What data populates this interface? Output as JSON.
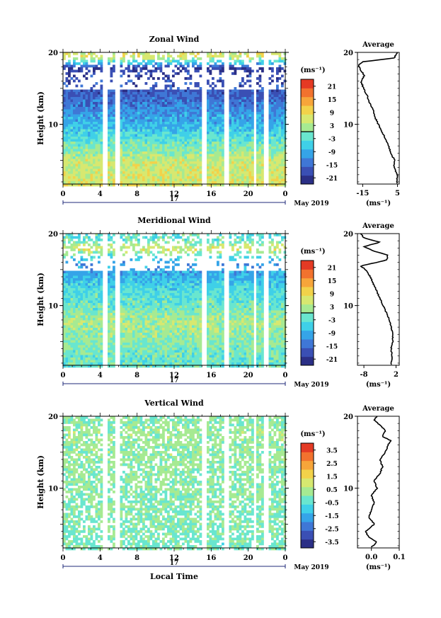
{
  "chart_data": [
    {
      "type": "heatmap",
      "title": "Zonal Wind",
      "ylabel": "Height (km)",
      "xlabel": "",
      "ylim": [
        1.7,
        20
      ],
      "yticks": [
        "10",
        "20"
      ],
      "xlim": [
        0,
        24
      ],
      "xticks": [
        "0",
        "4",
        "8",
        "12",
        "16",
        "20",
        "0"
      ],
      "day_label": "17",
      "date_label": "May 2019",
      "colorbar": {
        "unit": "(ms⁻¹)",
        "range": [
          -24,
          24
        ],
        "ticks": [
          "21",
          "15",
          "9",
          "3",
          "-3",
          "-9",
          "-15",
          "-21"
        ],
        "zero_line": true
      },
      "gaps_hours": [
        4.3,
        5.8,
        15.1,
        17.6,
        20.6,
        21.9
      ],
      "field_profile": [
        {
          "height": 2.5,
          "value": 6
        },
        {
          "height": 5,
          "value": 5
        },
        {
          "height": 8,
          "value": -3
        },
        {
          "height": 10,
          "value": -8
        },
        {
          "height": 12,
          "value": -12
        },
        {
          "height": 14,
          "value": -16
        },
        {
          "height": 16,
          "value": -18
        },
        {
          "height": 18,
          "value": -20
        },
        {
          "height": 19.5,
          "value": 6
        }
      ],
      "average": {
        "title": "Average",
        "xlabel": "(ms⁻¹)",
        "xticks": [
          "-15",
          "5"
        ],
        "xlim": [
          -18,
          6
        ],
        "yticks": [
          "10",
          "20"
        ],
        "profile": [
          {
            "height": 1.8,
            "value": 4.5
          },
          {
            "height": 3,
            "value": 5
          },
          {
            "height": 4,
            "value": 3
          },
          {
            "height": 5,
            "value": 3.5
          },
          {
            "height": 6,
            "value": 1
          },
          {
            "height": 7,
            "value": 0
          },
          {
            "height": 8,
            "value": -2
          },
          {
            "height": 9,
            "value": -4
          },
          {
            "height": 10,
            "value": -6
          },
          {
            "height": 11,
            "value": -8
          },
          {
            "height": 12,
            "value": -9
          },
          {
            "height": 13,
            "value": -11
          },
          {
            "height": 14,
            "value": -12.5
          },
          {
            "height": 15,
            "value": -14.5
          },
          {
            "height": 16,
            "value": -16
          },
          {
            "height": 16.8,
            "value": -14
          },
          {
            "height": 17.5,
            "value": -16
          },
          {
            "height": 18.2,
            "value": -17.5
          },
          {
            "height": 18.7,
            "value": -15
          },
          {
            "height": 19.2,
            "value": 3
          },
          {
            "height": 20,
            "value": 5
          }
        ]
      }
    },
    {
      "type": "heatmap",
      "title": "Meridional Wind",
      "ylabel": "Height (km)",
      "xlabel": "",
      "ylim": [
        1.7,
        20
      ],
      "yticks": [
        "10",
        "20"
      ],
      "xlim": [
        0,
        24
      ],
      "xticks": [
        "0",
        "4",
        "8",
        "12",
        "16",
        "20",
        "0"
      ],
      "day_label": "17",
      "date_label": "May 2019",
      "colorbar": {
        "unit": "(ms⁻¹)",
        "range": [
          -24,
          24
        ],
        "ticks": [
          "21",
          "15",
          "9",
          "3",
          "-3",
          "-9",
          "-15",
          "-21"
        ],
        "zero_line": true
      },
      "gaps_hours": [
        4.3,
        5.8,
        15.1,
        17.6,
        20.6,
        21.9
      ],
      "field_profile": [
        {
          "height": 2.5,
          "value": -2
        },
        {
          "height": 5,
          "value": 0
        },
        {
          "height": 8,
          "value": 3
        },
        {
          "height": 10,
          "value": -2
        },
        {
          "height": 12,
          "value": -4
        },
        {
          "height": 14,
          "value": -8
        },
        {
          "height": 16,
          "value": -12
        },
        {
          "height": 18,
          "value": 6
        },
        {
          "height": 19.5,
          "value": -3
        }
      ],
      "average": {
        "title": "Average",
        "xlabel": "(ms⁻¹)",
        "xticks": [
          "-8",
          "2"
        ],
        "xlim": [
          -10,
          3
        ],
        "yticks": [
          "10",
          "20"
        ],
        "profile": [
          {
            "height": 1.8,
            "value": 0.5
          },
          {
            "height": 3,
            "value": 0.8
          },
          {
            "height": 4,
            "value": 0.5
          },
          {
            "height": 5,
            "value": 1
          },
          {
            "height": 6,
            "value": 1
          },
          {
            "height": 7,
            "value": 0.5
          },
          {
            "height": 8,
            "value": 0
          },
          {
            "height": 9,
            "value": -1
          },
          {
            "height": 10,
            "value": -2
          },
          {
            "height": 11,
            "value": -3
          },
          {
            "height": 12,
            "value": -4
          },
          {
            "height": 13,
            "value": -5
          },
          {
            "height": 14,
            "value": -6
          },
          {
            "height": 15,
            "value": -7.5
          },
          {
            "height": 15.5,
            "value": -9
          },
          {
            "height": 16.3,
            "value": -1
          },
          {
            "height": 17,
            "value": -0.5
          },
          {
            "height": 17.6,
            "value": -5
          },
          {
            "height": 18.2,
            "value": -8
          },
          {
            "height": 18.8,
            "value": -3
          },
          {
            "height": 19.4,
            "value": -8
          },
          {
            "height": 20,
            "value": -9
          }
        ]
      }
    },
    {
      "type": "heatmap",
      "title": "Vertical Wind",
      "ylabel": "Height (km)",
      "xlabel": "Local Time",
      "ylim": [
        1.7,
        20
      ],
      "yticks": [
        "10",
        "20"
      ],
      "xlim": [
        0,
        24
      ],
      "xticks": [
        "0",
        "4",
        "8",
        "12",
        "16",
        "20",
        "0"
      ],
      "day_label": "17",
      "date_label": "May 2019",
      "colorbar": {
        "unit": "(ms⁻¹)",
        "range": [
          -4,
          4
        ],
        "ticks": [
          "3.5",
          "2.5",
          "1.5",
          "0.5",
          "-0.5",
          "-1.5",
          "-2.5",
          "-3.5"
        ],
        "zero_line": false
      },
      "gaps_hours": [
        4.3,
        5.8,
        15.1,
        17.6,
        20.6,
        21.9
      ],
      "field_profile": [
        {
          "height": 2.5,
          "value": -0.2
        },
        {
          "height": 5,
          "value": 0
        },
        {
          "height": 8,
          "value": 0
        },
        {
          "height": 10,
          "value": 0.1
        },
        {
          "height": 12,
          "value": 0.1
        },
        {
          "height": 14,
          "value": 0.2
        },
        {
          "height": 16,
          "value": 0.2
        },
        {
          "height": 18,
          "value": 0.3
        },
        {
          "height": 19.5,
          "value": 0.1
        }
      ],
      "average": {
        "title": "Average",
        "xlabel": "(ms⁻¹)",
        "xticks": [
          "0.0",
          "0.1"
        ],
        "xlim": [
          -0.05,
          0.1
        ],
        "yticks": [
          "10",
          "20"
        ],
        "profile": [
          {
            "height": 1.8,
            "value": 0.0
          },
          {
            "height": 2.5,
            "value": 0.02
          },
          {
            "height": 3.2,
            "value": -0.01
          },
          {
            "height": 4,
            "value": -0.02
          },
          {
            "height": 5,
            "value": 0.01
          },
          {
            "height": 6,
            "value": -0.01
          },
          {
            "height": 7,
            "value": 0.0
          },
          {
            "height": 8,
            "value": 0.01
          },
          {
            "height": 9,
            "value": 0.0
          },
          {
            "height": 10,
            "value": 0.02
          },
          {
            "height": 11,
            "value": 0.01
          },
          {
            "height": 12,
            "value": 0.03
          },
          {
            "height": 13,
            "value": 0.04
          },
          {
            "height": 14,
            "value": 0.03
          },
          {
            "height": 15,
            "value": 0.05
          },
          {
            "height": 16,
            "value": 0.06
          },
          {
            "height": 16.6,
            "value": 0.07
          },
          {
            "height": 17.2,
            "value": 0.04
          },
          {
            "height": 18,
            "value": 0.05
          },
          {
            "height": 18.8,
            "value": 0.03
          },
          {
            "height": 19.5,
            "value": 0.01
          },
          {
            "height": 20,
            "value": 0.02
          }
        ]
      }
    }
  ]
}
